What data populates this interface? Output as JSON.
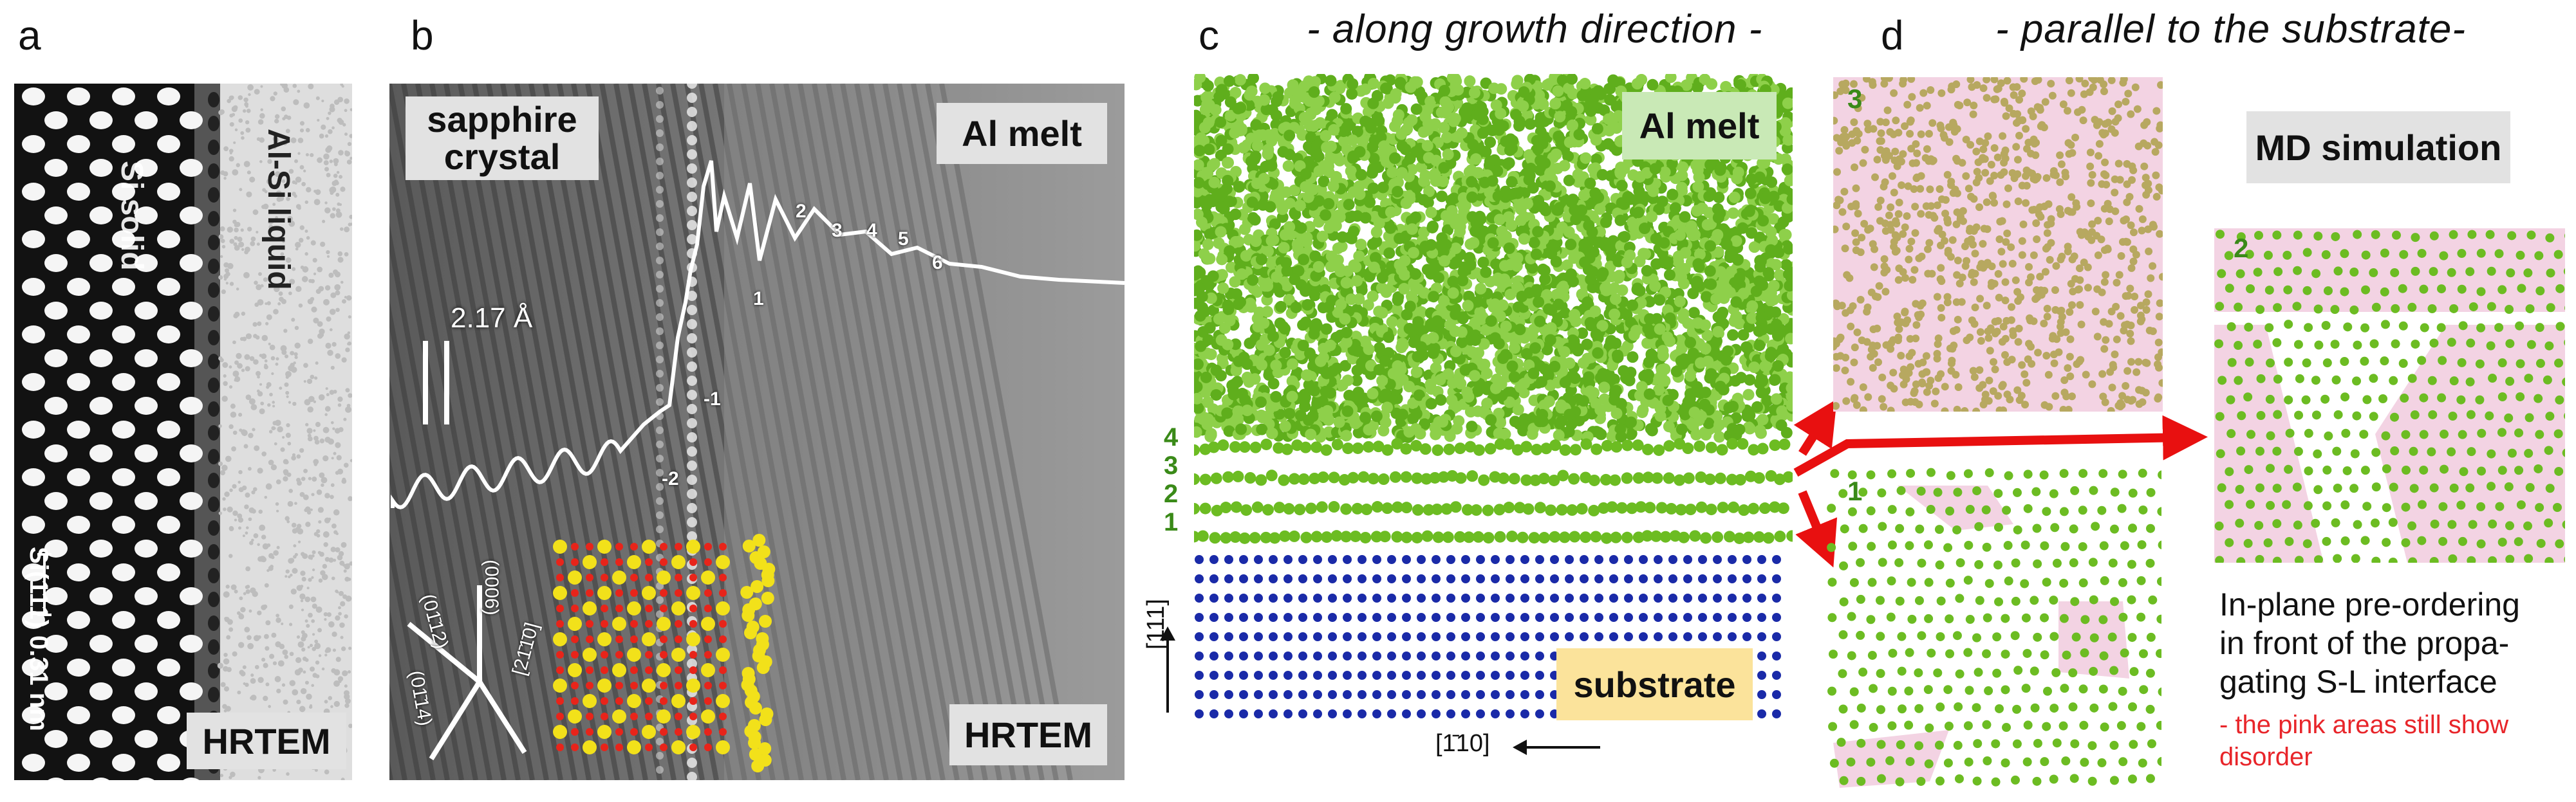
{
  "panels": {
    "a": {
      "letter": "a",
      "solid": "Si solid",
      "liquid": "Al-Si liquid",
      "scale": "Si(111) 0.31 nm",
      "tag": "HRTEM"
    },
    "b": {
      "letter": "b",
      "crystal_line1": "sapphire",
      "crystal_line2": "crystal",
      "melt": "Al melt",
      "spacing": "2.17 Å",
      "peaks": [
        "-2",
        "-1",
        "1",
        "2",
        "3",
        "4",
        "5",
        "6"
      ],
      "dir1": "(0006)",
      "dir2": "(01̄12)",
      "dir3": "(01̄14)",
      "dir4": "[21̄1̄0]",
      "tag": "HRTEM"
    },
    "c": {
      "letter": "c",
      "title": "- along growth direction -",
      "melt": "Al melt",
      "substrate": "substrate",
      "layers": [
        "4",
        "3",
        "2",
        "1"
      ],
      "axis_vertical": "[111]",
      "axis_horizontal": "[1̄10]"
    },
    "d": {
      "letter": "d",
      "title": "- parallel to the substrate-",
      "tag": "MD simulation",
      "layer3": "3",
      "layer2": "2",
      "layer1": "1",
      "caption_line1": "In-plane pre-ordering",
      "caption_line2": "in front of the propa-",
      "caption_line3": "gating S-L interface",
      "note_line1": "- the pink areas still show",
      "note_line2": "disorder"
    }
  },
  "colors": {
    "green": "#5fae1c",
    "substrate_blue": "#1a2aa8",
    "pink": "#f3d3e3",
    "red_arrow": "#e81010",
    "note_red": "#e8252a",
    "layer_label": "#3a8a18"
  }
}
